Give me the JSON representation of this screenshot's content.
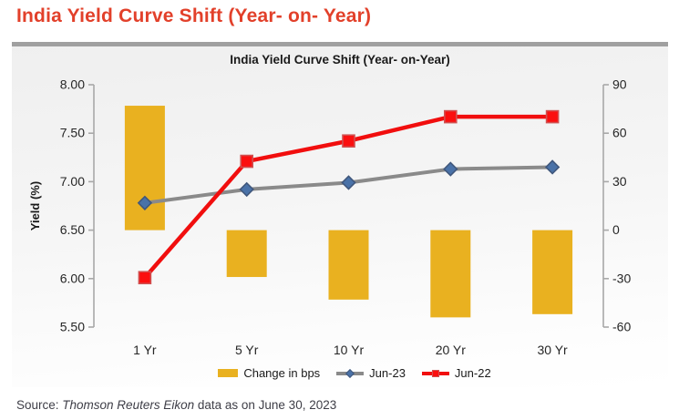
{
  "page": {
    "title": "India Yield Curve Shift (Year- on- Year)",
    "title_color": "#e2402a"
  },
  "chart": {
    "title": "India Yield Curve Shift (Year- on-Year)"
  },
  "chart_data": {
    "type": "bar",
    "subtype": "combo-bar-line-dual-axis",
    "title": "India Yield Curve Shift (Year- on-Year)",
    "categories": [
      "1 Yr",
      "5 Yr",
      "10 Yr",
      "20 Yr",
      "30 Yr"
    ],
    "bar_series": {
      "name": "Change in bps",
      "axis": "right",
      "color": "#e9b120",
      "values": [
        77,
        -29,
        -43,
        -54,
        -52
      ]
    },
    "line_series": [
      {
        "name": "Jun-23",
        "axis": "left",
        "color": "#8a8a8a",
        "line_width": 4,
        "marker": "diamond",
        "marker_fill": "#4a72a8",
        "marker_stroke": "#40577c",
        "values": [
          6.78,
          6.92,
          6.99,
          7.13,
          7.15
        ]
      },
      {
        "name": "Jun-22",
        "axis": "left",
        "color": "#f10e0e",
        "line_width": 4.5,
        "marker": "square",
        "marker_fill": "#fb0f0f",
        "marker_stroke": "#d05050",
        "values": [
          6.01,
          7.21,
          7.42,
          7.67,
          7.67
        ]
      }
    ],
    "left_axis": {
      "label": "Yield (%)",
      "min": 5.5,
      "max": 8.0,
      "ticks": [
        "8.00",
        "7.50",
        "7.00",
        "6.50",
        "6.00",
        "5.50"
      ]
    },
    "right_axis": {
      "min": -60,
      "max": 90,
      "ticks": [
        "90",
        "60",
        "30",
        "0",
        "-30",
        "-60"
      ]
    },
    "grid": false,
    "legend_position": "bottom"
  },
  "source": {
    "prefix": "Source: ",
    "name": "Thomson Reuters Eikon",
    "suffix": " data as on June 30, 2023"
  }
}
